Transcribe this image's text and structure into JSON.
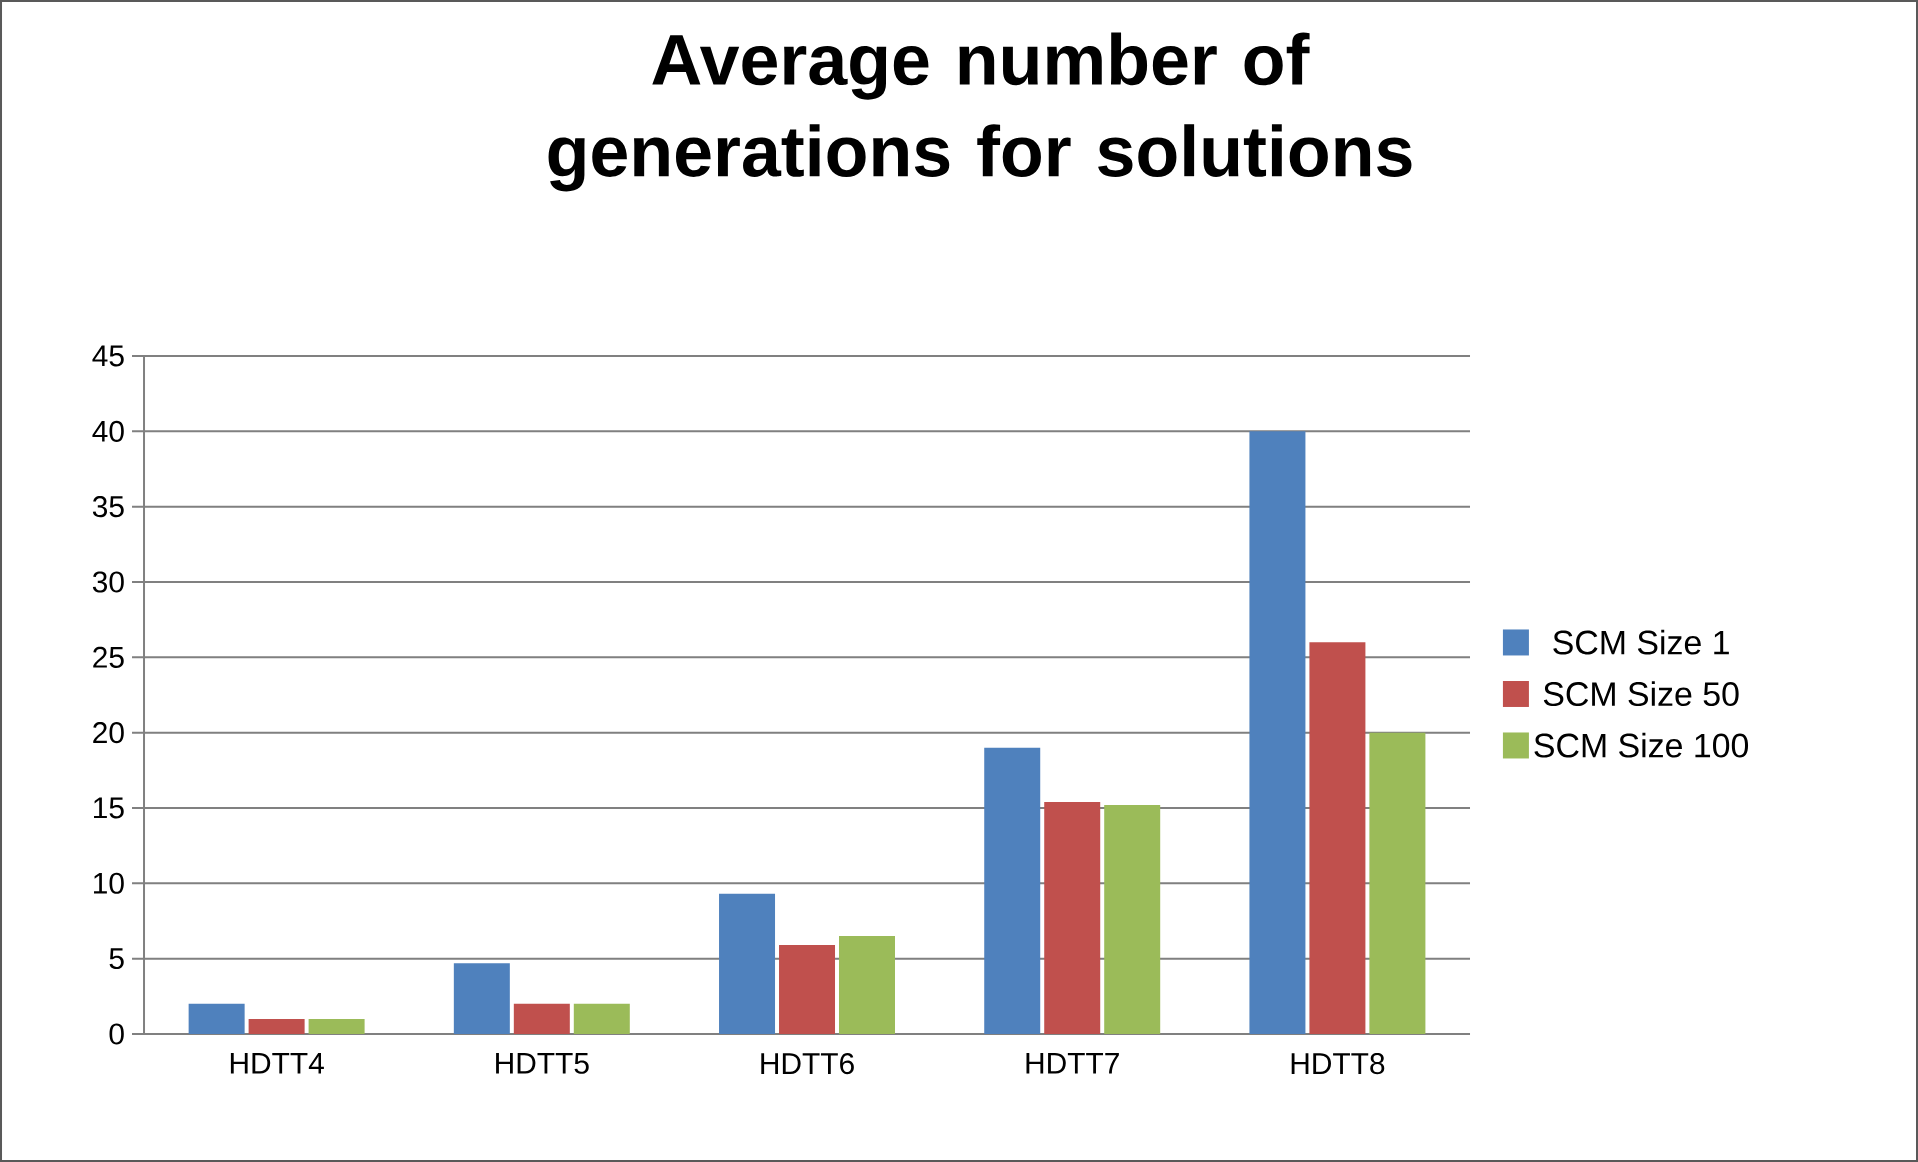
{
  "chart_data": {
    "type": "bar",
    "title": "Average number of generations for solutions",
    "categories": [
      "HDTT4",
      "HDTT5",
      "HDTT6",
      "HDTT7",
      "HDTT8"
    ],
    "series": [
      {
        "name": "SCM Size 1",
        "color": "#4f81bd",
        "values": [
          2,
          4.7,
          9.3,
          19,
          40
        ]
      },
      {
        "name": "SCM Size 50",
        "color": "#c0504d",
        "values": [
          1,
          2,
          5.9,
          15.4,
          26
        ]
      },
      {
        "name": "SCM Size 100",
        "color": "#9bbb59",
        "values": [
          1,
          2,
          6.5,
          15.2,
          20
        ]
      }
    ],
    "ylim": [
      0,
      45
    ],
    "yticks": [
      0,
      5,
      10,
      15,
      20,
      25,
      30,
      35,
      40,
      45
    ],
    "grid": "y",
    "legend": "right"
  }
}
